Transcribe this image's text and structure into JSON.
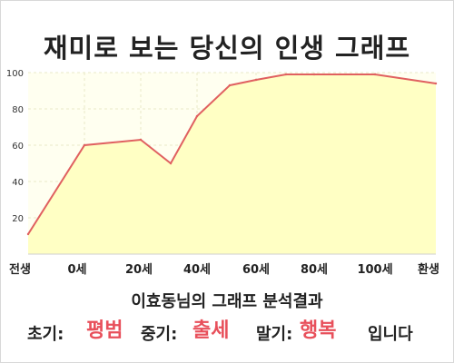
{
  "title": "재미로 보는 당신의 인생 그래프",
  "subtitle": "이효동님의 그래프 분석결과",
  "result": {
    "early_label": "초기:",
    "early_value": "평범",
    "mid_label": "중기:",
    "mid_value": "출세",
    "late_label": "말기:",
    "late_value": "행복",
    "suffix": "입니다"
  },
  "colors": {
    "line": "#e06060",
    "fill": "#ffffc4",
    "plot_bg": "#fffff0",
    "grid": "#e8e8c8",
    "accent_text": "#e8505b"
  },
  "chart_data": {
    "type": "area",
    "x_tick_labels": [
      "전생",
      "0세",
      "20세",
      "40세",
      "60세",
      "80세",
      "100세",
      "환생"
    ],
    "y_tick_labels": [
      "20",
      "40",
      "60",
      "80",
      "100"
    ],
    "ylim": [
      0,
      100
    ],
    "grid": true,
    "points": [
      {
        "x": "전생",
        "y": 11
      },
      {
        "x": "0세",
        "y": 60
      },
      {
        "x": "20세",
        "y": 63
      },
      {
        "x": "30세",
        "y": 50
      },
      {
        "x": "40세",
        "y": 76
      },
      {
        "x": "50세",
        "y": 93
      },
      {
        "x": "60세",
        "y": 96
      },
      {
        "x": "70세",
        "y": 99
      },
      {
        "x": "80세",
        "y": 99
      },
      {
        "x": "100세",
        "y": 99
      },
      {
        "x": "환생",
        "y": 94
      }
    ]
  }
}
